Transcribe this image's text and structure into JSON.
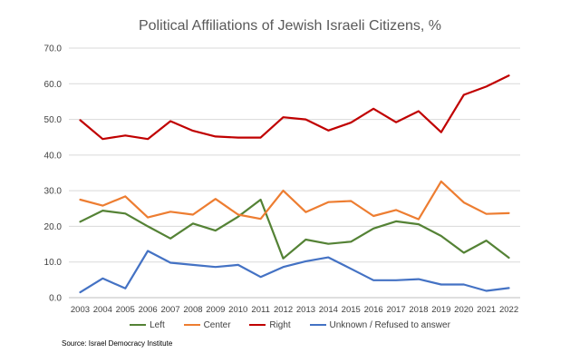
{
  "source": "Source: Israel Democracy Institute",
  "chart_data": {
    "type": "line",
    "title": "Political Affiliations of Jewish Israeli Citizens, %",
    "xlabel": "",
    "ylabel": "",
    "ylim": [
      0,
      70
    ],
    "yticks": [
      "0.0",
      "10.0",
      "20.0",
      "30.0",
      "40.0",
      "50.0",
      "60.0",
      "70.0"
    ],
    "grid": true,
    "legend": "bottom",
    "categories": [
      "2003",
      "2004",
      "2005",
      "2006",
      "2007",
      "2008",
      "2009",
      "2010",
      "2011",
      "2012",
      "2013",
      "2014",
      "2015",
      "2016",
      "2017",
      "2018",
      "2019",
      "2020",
      "2021",
      "2022"
    ],
    "series": [
      {
        "name": "Left",
        "color": "#548235",
        "values": [
          21.3,
          24.4,
          23.6,
          20.0,
          16.6,
          20.8,
          18.8,
          22.7,
          27.5,
          11.0,
          16.3,
          15.1,
          15.7,
          19.4,
          21.4,
          20.6,
          17.3,
          12.6,
          16.0,
          11.2
        ]
      },
      {
        "name": "Center",
        "color": "#ED7D31",
        "values": [
          27.5,
          25.8,
          28.4,
          22.5,
          24.1,
          23.3,
          27.7,
          23.3,
          22.1,
          30.0,
          24.0,
          26.8,
          27.1,
          22.9,
          24.6,
          22.0,
          32.6,
          26.7,
          23.5,
          23.7
        ]
      },
      {
        "name": "Right",
        "color": "#C00000",
        "values": [
          49.8,
          44.5,
          45.5,
          44.5,
          49.5,
          46.8,
          45.2,
          44.9,
          44.9,
          50.6,
          50.0,
          46.9,
          49.1,
          53.0,
          49.2,
          52.3,
          46.4,
          56.9,
          59.2,
          62.3
        ]
      },
      {
        "name": "Unknown / Refused to answer",
        "color": "#4472C4",
        "values": [
          1.5,
          5.4,
          2.6,
          13.1,
          9.8,
          9.2,
          8.6,
          9.2,
          5.8,
          8.6,
          10.2,
          11.3,
          8.1,
          4.9,
          4.9,
          5.2,
          3.7,
          3.7,
          1.9,
          2.7
        ]
      }
    ]
  }
}
